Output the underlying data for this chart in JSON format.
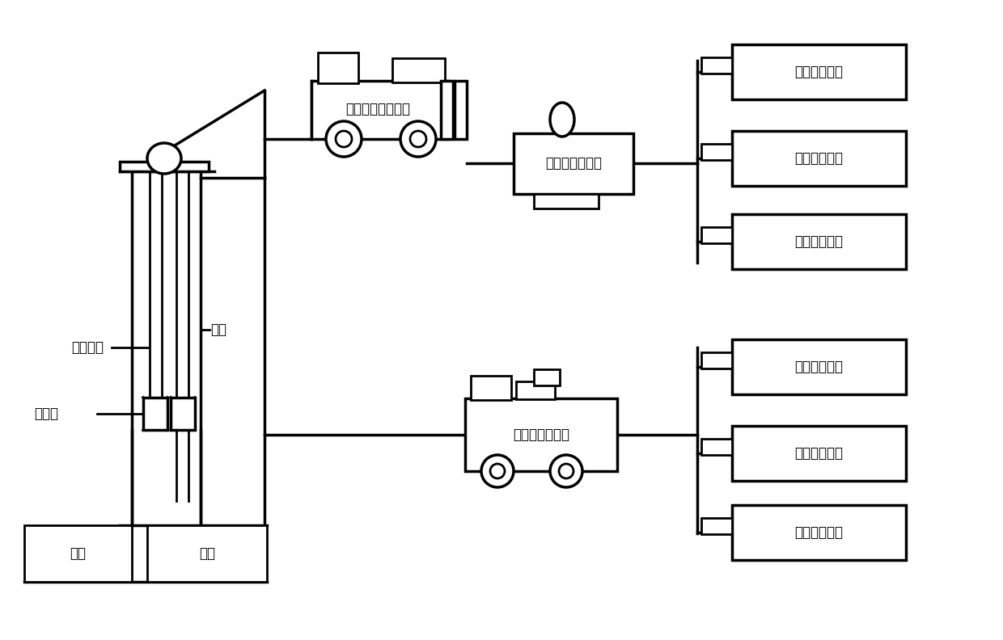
{
  "bg_color": "#ffffff",
  "line_color": "#000000",
  "text_color": "#000000",
  "font_size": 12,
  "labels": {
    "co2_truck": "二氧化碳压裂泵车",
    "co2_pump": "二氧化碳增压泵",
    "co2_tank": "二氧化碳储罐",
    "visc_device": "降粘剑泵注设备",
    "visc_tank": "降粘剑溶液罐",
    "injection_pipe": "注入油管",
    "casing": "套管",
    "packer": "封隔器",
    "oil_layer": "油层"
  }
}
